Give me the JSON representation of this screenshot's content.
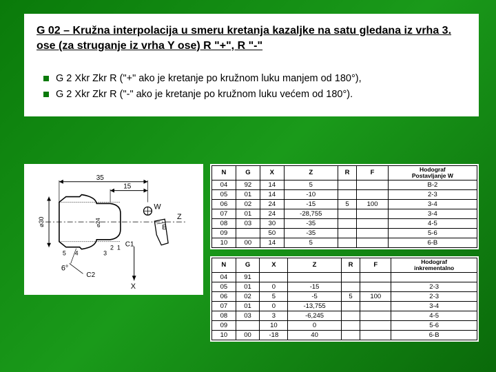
{
  "title": "G 02 – Kružna interpolacija u smeru kretanja kazaljke na satu gledana iz vrha 3. ose (za struganje iz vrha Y ose) R \"+\", R \"-\"",
  "bullets": [
    "G 2 Xkr Zkr R (\"+\" ako je kretanje po kružnom luku manjem od 180°),",
    "G 2 Xkr Zkr R (\"-\" ako je kretanje po kružnom luku većem od 180°)."
  ],
  "diagram": {
    "labels": {
      "top_dim": "35",
      "top_dim2": "15",
      "left_dim1": "⌀30",
      "left_dim2": "⌀24",
      "w": "W",
      "z": "Z",
      "b": "B",
      "c1": "C1",
      "c2": "C2",
      "x": "X",
      "six": "6°",
      "five": "5",
      "n1": "1",
      "n2": "2",
      "n3": "3",
      "n4": "4",
      "n5": "5",
      "nfour": "4"
    }
  },
  "table1": {
    "headers": [
      "N",
      "G",
      "X",
      "Z",
      "R",
      "F"
    ],
    "hodograf_label": "Hodograf",
    "subheader": "Postavljanje W",
    "rows": [
      [
        "04",
        "92",
        "14",
        "5",
        "",
        "",
        "B-2"
      ],
      [
        "05",
        "01",
        "14",
        "-10",
        "",
        "",
        "2-3"
      ],
      [
        "06",
        "02",
        "24",
        "-15",
        "5",
        "100",
        "3-4"
      ],
      [
        "07",
        "01",
        "24",
        "-28,755",
        "",
        "",
        "3-4"
      ],
      [
        "08",
        "03",
        "30",
        "-35",
        "",
        "",
        "4-5"
      ],
      [
        "09",
        "",
        "50",
        "-35",
        "",
        "",
        "5-6"
      ],
      [
        "10",
        "00",
        "14",
        "5",
        "",
        "",
        "6-B"
      ]
    ]
  },
  "table2": {
    "headers": [
      "N",
      "G",
      "X",
      "Z",
      "R",
      "F"
    ],
    "hodograf_label": "Hodograf",
    "subheader": "inkrementalno",
    "rows": [
      [
        "04",
        "91",
        "",
        "",
        "",
        "",
        ""
      ],
      [
        "05",
        "01",
        "0",
        "-15",
        "",
        "",
        "2-3"
      ],
      [
        "06",
        "02",
        "5",
        "-5",
        "5",
        "100",
        "2-3"
      ],
      [
        "07",
        "01",
        "0",
        "-13,755",
        "",
        "",
        "3-4"
      ],
      [
        "08",
        "03",
        "3",
        "-6,245",
        "",
        "",
        "4-5"
      ],
      [
        "09",
        "",
        "10",
        "0",
        "",
        "",
        "5-6"
      ],
      [
        "10",
        "00",
        "-18",
        "40",
        "",
        "",
        "6-B"
      ]
    ]
  }
}
